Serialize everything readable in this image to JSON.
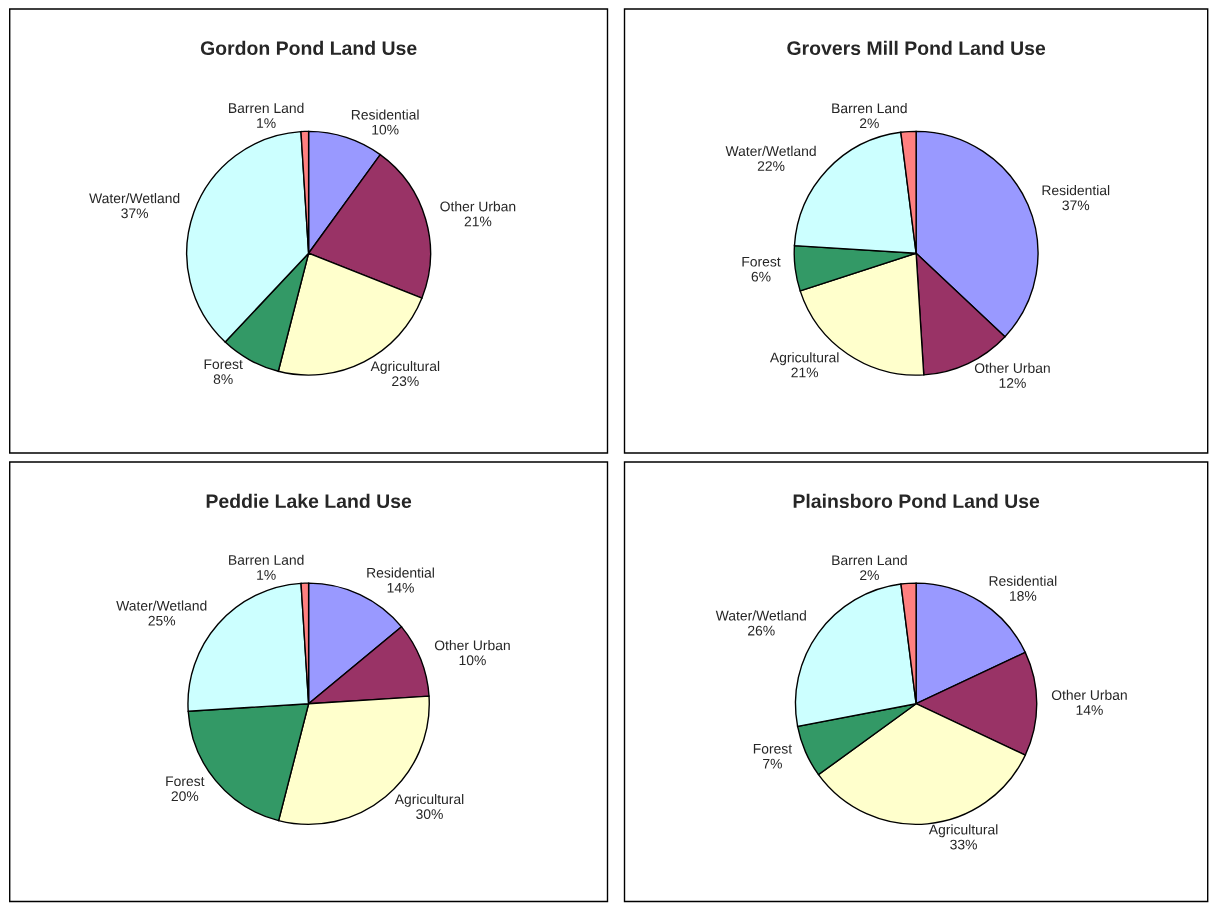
{
  "chart_data": [
    {
      "type": "pie",
      "title": "Gordon Pond Land Use",
      "categories": [
        "Residential",
        "Other Urban",
        "Agricultural",
        "Forest",
        "Water/Wetland",
        "Barren Land"
      ],
      "values": [
        10,
        21,
        23,
        8,
        37,
        1
      ],
      "value_labels": [
        "10%",
        "21%",
        "23%",
        "8%",
        "37%",
        "1%"
      ],
      "colors": [
        "#9999ff",
        "#993366",
        "#ffffcc",
        "#339966",
        "#ccffff",
        "#ff8080"
      ]
    },
    {
      "type": "pie",
      "title": "Grovers Mill Pond Land Use",
      "categories": [
        "Residential",
        "Other Urban",
        "Agricultural",
        "Forest",
        "Water/Wetland",
        "Barren Land"
      ],
      "values": [
        37,
        12,
        21,
        6,
        22,
        2
      ],
      "value_labels": [
        "37%",
        "12%",
        "21%",
        "6%",
        "22%",
        "2%"
      ],
      "colors": [
        "#9999ff",
        "#993366",
        "#ffffcc",
        "#339966",
        "#ccffff",
        "#ff8080"
      ]
    },
    {
      "type": "pie",
      "title": "Peddie Lake Land Use",
      "categories": [
        "Residential",
        "Other Urban",
        "Agricultural",
        "Forest",
        "Water/Wetland",
        "Barren Land"
      ],
      "values": [
        14,
        10,
        30,
        20,
        25,
        1
      ],
      "value_labels": [
        "14%",
        "10%",
        "30%",
        "20%",
        "25%",
        "1%"
      ],
      "colors": [
        "#9999ff",
        "#993366",
        "#ffffcc",
        "#339966",
        "#ccffff",
        "#ff8080"
      ]
    },
    {
      "type": "pie",
      "title": "Plainsboro Pond Land Use",
      "categories": [
        "Residential",
        "Other Urban",
        "Agricultural",
        "Forest",
        "Water/Wetland",
        "Barren Land"
      ],
      "values": [
        18,
        14,
        33,
        7,
        26,
        2
      ],
      "value_labels": [
        "18%",
        "14%",
        "33%",
        "7%",
        "26%",
        "2%"
      ],
      "colors": [
        "#9999ff",
        "#993366",
        "#ffffcc",
        "#339966",
        "#ccffff",
        "#ff8080"
      ]
    }
  ]
}
